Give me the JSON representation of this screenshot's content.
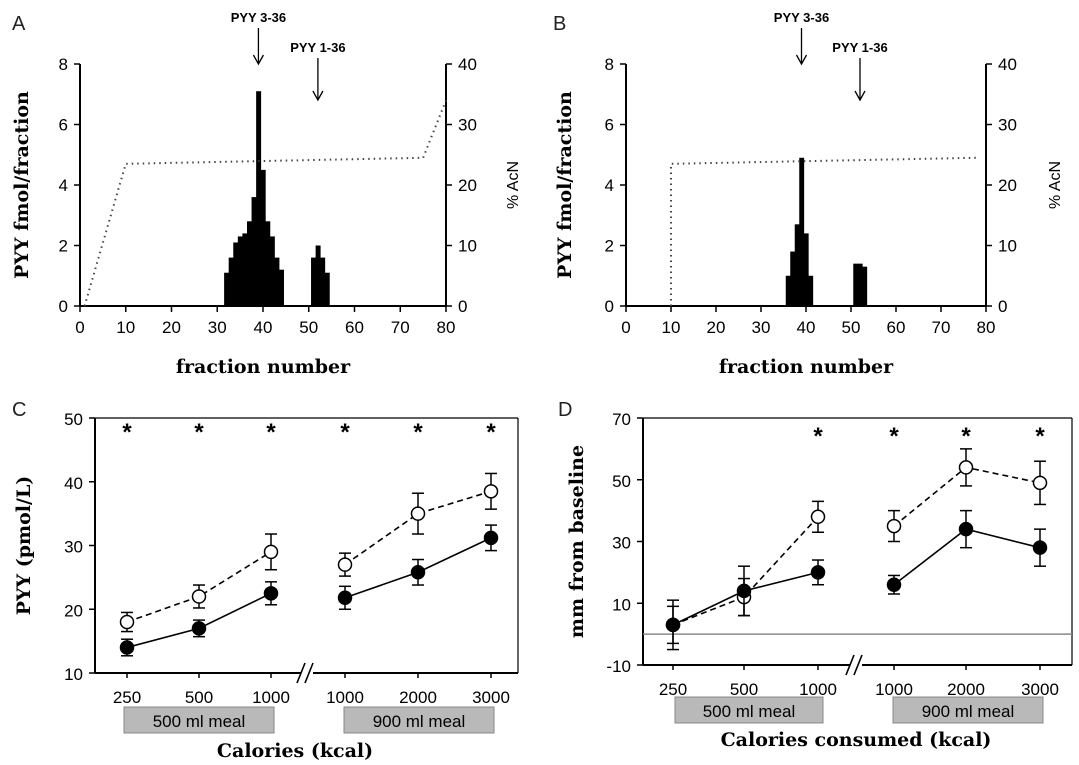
{
  "chart_data": [
    {
      "panel": "A",
      "type": "bar",
      "x": [
        32,
        33,
        34,
        35,
        36,
        37,
        38,
        39,
        40,
        41,
        42,
        43,
        44,
        51,
        52,
        53,
        54
      ],
      "values": [
        1.1,
        1.6,
        2.1,
        2.3,
        2.4,
        2.8,
        3.6,
        7.1,
        4.5,
        2.8,
        2.3,
        1.6,
        1.2,
        1.6,
        2.0,
        1.6,
        1.1
      ],
      "secondary_series": {
        "x": [
          1,
          10,
          75,
          80
        ],
        "values": [
          0,
          23.5,
          24.5,
          34
        ]
      },
      "xlabel": "fraction number",
      "ylabel": "PYY fmol/fraction",
      "y2label": "% AcN",
      "xticks": [
        "0",
        "10",
        "20",
        "30",
        "40",
        "50",
        "60",
        "70",
        "80"
      ],
      "yticks": [
        "0",
        "2",
        "4",
        "6",
        "8"
      ],
      "y2ticks": [
        "0",
        "10",
        "20",
        "30",
        "40"
      ],
      "xlim": [
        0,
        80
      ],
      "ylim": [
        0,
        8
      ],
      "y2lim": [
        0,
        40
      ],
      "annotations": [
        {
          "text": "PYY 3-36",
          "x": 39
        },
        {
          "text": "PYY 1-36",
          "x": 52
        }
      ]
    },
    {
      "panel": "B",
      "type": "bar",
      "x": [
        36,
        37,
        38,
        39,
        40,
        41,
        51,
        52,
        53
      ],
      "values": [
        1.0,
        1.8,
        2.7,
        4.9,
        2.4,
        1.0,
        1.4,
        1.4,
        1.3
      ],
      "secondary_series": {
        "x": [
          10,
          10,
          78
        ],
        "values": [
          0,
          23.5,
          24.5
        ]
      },
      "xlabel": "fraction number",
      "ylabel": "PYY fmol/fraction",
      "y2label": "% AcN",
      "xticks": [
        "0",
        "10",
        "20",
        "30",
        "40",
        "50",
        "60",
        "70",
        "80"
      ],
      "yticks": [
        "0",
        "2",
        "4",
        "6",
        "8"
      ],
      "y2ticks": [
        "0",
        "10",
        "20",
        "30",
        "40"
      ],
      "xlim": [
        0,
        80
      ],
      "ylim": [
        0,
        8
      ],
      "y2lim": [
        0,
        40
      ],
      "annotations": [
        {
          "text": "PYY 3-36",
          "x": 39
        },
        {
          "text": "PYY 1-36",
          "x": 52
        }
      ]
    },
    {
      "panel": "C",
      "type": "line",
      "categories": [
        "250",
        "500",
        "1000",
        "1000",
        "2000",
        "3000"
      ],
      "series": [
        {
          "marker": "open-circle",
          "style": "dashed",
          "values": [
            18,
            22,
            29,
            27,
            35,
            38.5
          ],
          "errors": [
            1.5,
            1.8,
            2.8,
            1.8,
            3.2,
            2.8
          ]
        },
        {
          "marker": "filled-circle",
          "style": "solid",
          "values": [
            14,
            17,
            22.5,
            21.8,
            25.8,
            31.2
          ],
          "errors": [
            1.3,
            1.3,
            1.8,
            1.8,
            2.0,
            2.0
          ]
        }
      ],
      "stars": [
        "*",
        "*",
        "*",
        "*",
        "*",
        "*"
      ],
      "groups": [
        "500 ml meal",
        "900 ml meal"
      ],
      "xlabel": "Calories (kcal)",
      "ylabel": "PYY (pmol/L)",
      "yticks": [
        "10",
        "20",
        "30",
        "40",
        "50"
      ],
      "ylim": [
        10,
        50
      ]
    },
    {
      "panel": "D",
      "type": "line",
      "categories": [
        "250",
        "500",
        "1000",
        "1000",
        "2000",
        "3000"
      ],
      "series": [
        {
          "marker": "open-circle",
          "style": "dashed",
          "values": [
            3,
            12,
            38,
            35,
            54,
            49
          ],
          "errors": [
            8,
            6,
            5,
            5,
            6,
            7
          ]
        },
        {
          "marker": "filled-circle",
          "style": "solid",
          "values": [
            3,
            14,
            20,
            16,
            34,
            28
          ],
          "errors": [
            6,
            8,
            4,
            3,
            6,
            6
          ]
        }
      ],
      "stars": [
        "*",
        "*",
        "*",
        "*"
      ],
      "groups": [
        "500 ml meal",
        "900 ml meal"
      ],
      "xlabel": "Calories consumed (kcal)",
      "ylabel": "mm  from baseline",
      "yticks": [
        "-10",
        "10",
        "30",
        "50",
        "70"
      ],
      "ylim": [
        -10,
        70
      ]
    }
  ]
}
